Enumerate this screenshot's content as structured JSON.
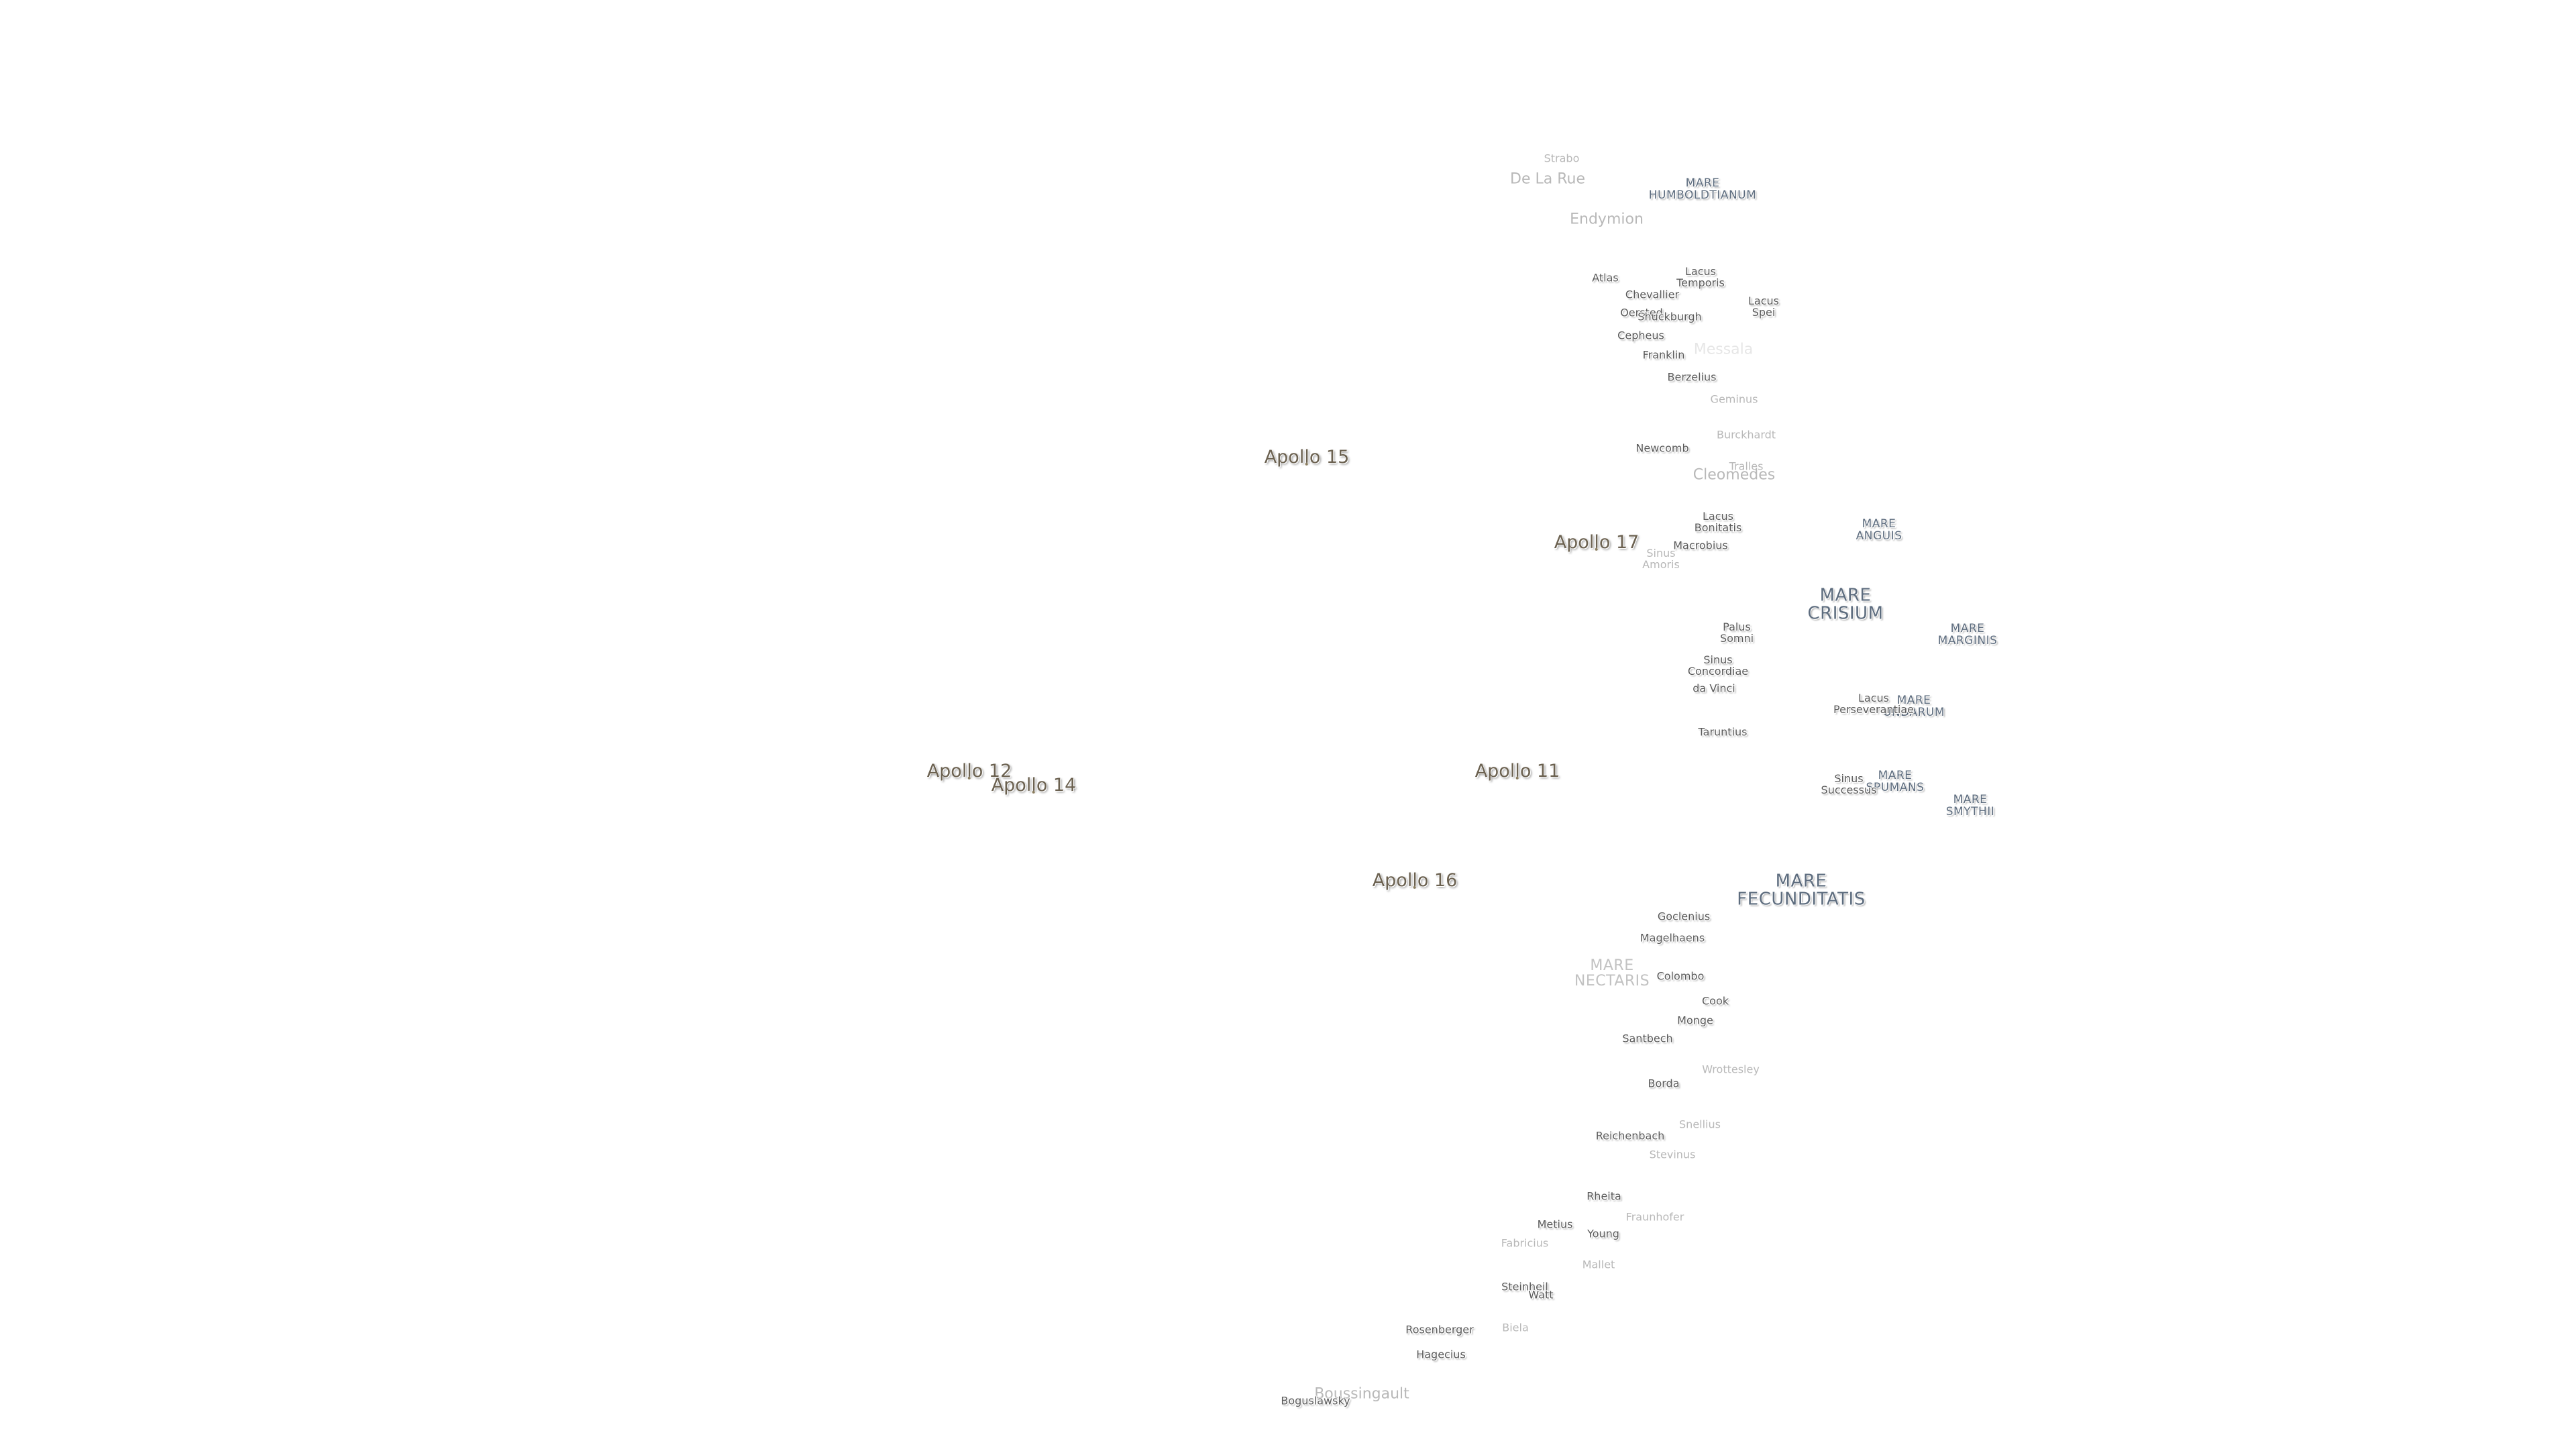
{
  "apollo_sites": [
    {
      "id": "a15",
      "label": "Apollo 15"
    },
    {
      "id": "a17",
      "label": "Apollo 17"
    },
    {
      "id": "a12",
      "label": "Apollo 12"
    },
    {
      "id": "a14",
      "label": "Apollo 14"
    },
    {
      "id": "a11",
      "label": "Apollo 11"
    },
    {
      "id": "a16",
      "label": "Apollo 16"
    }
  ],
  "maria": [
    {
      "id": "humboldtianum",
      "lines": [
        "MARE",
        "HUMBOLDTIANUM"
      ]
    },
    {
      "id": "anguis",
      "lines": [
        "MARE",
        "ANGUIS"
      ]
    },
    {
      "id": "crisium",
      "lines": [
        "MARE",
        "CRISIUM"
      ]
    },
    {
      "id": "marginis",
      "lines": [
        "MARE",
        "MARGINIS"
      ]
    },
    {
      "id": "undarum",
      "lines": [
        "MARE",
        "UNDARUM"
      ]
    },
    {
      "id": "spumans",
      "lines": [
        "MARE",
        "SPUMANS"
      ]
    },
    {
      "id": "smythii",
      "lines": [
        "MARE",
        "SMYTHII"
      ]
    },
    {
      "id": "fecunditatis",
      "lines": [
        "MARE",
        "FECUNDITATIS"
      ]
    },
    {
      "id": "nectaris",
      "lines": [
        "MARE",
        "NECTARIS"
      ]
    }
  ],
  "lacus_sinus_palus": [
    {
      "id": "lacus-temporis",
      "lines": [
        "Lacus",
        "Temporis"
      ]
    },
    {
      "id": "lacus-spei",
      "lines": [
        "Lacus",
        "Spei"
      ]
    },
    {
      "id": "lacus-bonitatis",
      "lines": [
        "Lacus",
        "Bonitatis"
      ]
    },
    {
      "id": "sinus-amoris",
      "lines": [
        "Sinus",
        "Amoris"
      ]
    },
    {
      "id": "palus-somni",
      "lines": [
        "Palus",
        "Somni"
      ]
    },
    {
      "id": "sinus-concordiae",
      "lines": [
        "Sinus",
        "Concordiae"
      ]
    },
    {
      "id": "lacus-perseverantiae",
      "lines": [
        "Lacus",
        "Perseverantiae"
      ]
    },
    {
      "id": "sinus-successus",
      "lines": [
        "Sinus",
        "Successus"
      ]
    }
  ],
  "craters": [
    {
      "id": "strabo",
      "label": "Strabo"
    },
    {
      "id": "de-la-rue",
      "label": "De La Rue"
    },
    {
      "id": "endymion",
      "label": "Endymion"
    },
    {
      "id": "atlas",
      "label": "Atlas"
    },
    {
      "id": "chevallier",
      "label": "Chevallier"
    },
    {
      "id": "oersted",
      "label": "Oersted"
    },
    {
      "id": "shuckburgh",
      "label": "Shuckburgh"
    },
    {
      "id": "cepheus",
      "label": "Cepheus"
    },
    {
      "id": "messala",
      "label": "Messala"
    },
    {
      "id": "franklin",
      "label": "Franklin"
    },
    {
      "id": "berzelius",
      "label": "Berzelius"
    },
    {
      "id": "geminus",
      "label": "Geminus"
    },
    {
      "id": "burckhardt",
      "label": "Burckhardt"
    },
    {
      "id": "newcomb",
      "label": "Newcomb"
    },
    {
      "id": "tralles",
      "label": "Tralles"
    },
    {
      "id": "cleomedes",
      "label": "Cleomedes"
    },
    {
      "id": "macrobius",
      "label": "Macrobius"
    },
    {
      "id": "da-vinci",
      "label": "da Vinci"
    },
    {
      "id": "taruntius",
      "label": "Taruntius"
    },
    {
      "id": "goclenius",
      "label": "Goclenius"
    },
    {
      "id": "magelhaens",
      "label": "Magelhaens"
    },
    {
      "id": "colombo",
      "label": "Colombo"
    },
    {
      "id": "cook",
      "label": "Cook"
    },
    {
      "id": "monge",
      "label": "Monge"
    },
    {
      "id": "santbech",
      "label": "Santbech"
    },
    {
      "id": "wrottesley",
      "label": "Wrottesley"
    },
    {
      "id": "borda",
      "label": "Borda"
    },
    {
      "id": "snellius",
      "label": "Snellius"
    },
    {
      "id": "reichenbach",
      "label": "Reichenbach"
    },
    {
      "id": "stevinus",
      "label": "Stevinus"
    },
    {
      "id": "rheita",
      "label": "Rheita"
    },
    {
      "id": "fraunhofer",
      "label": "Fraunhofer"
    },
    {
      "id": "metius",
      "label": "Metius"
    },
    {
      "id": "young",
      "label": "Young"
    },
    {
      "id": "fabricius",
      "label": "Fabricius"
    },
    {
      "id": "mallet",
      "label": "Mallet"
    },
    {
      "id": "steinheil",
      "label": "Steinheil"
    },
    {
      "id": "watt",
      "label": "Watt"
    },
    {
      "id": "rosenberger",
      "label": "Rosenberger"
    },
    {
      "id": "biela",
      "label": "Biela"
    },
    {
      "id": "hagecius",
      "label": "Hagecius"
    },
    {
      "id": "boussingault",
      "label": "Boussingault"
    },
    {
      "id": "boguslawsky",
      "label": "Boguslawsky"
    }
  ]
}
